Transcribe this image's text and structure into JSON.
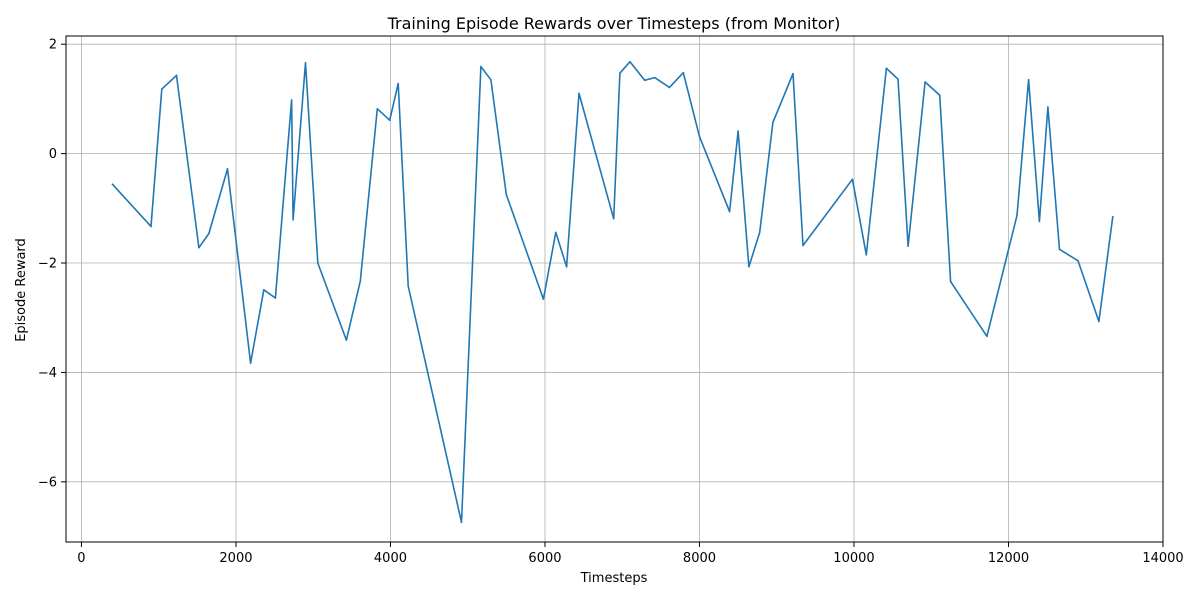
{
  "chart_data": {
    "type": "line",
    "title": "Training Episode Rewards over Timesteps (from Monitor)",
    "xlabel": "Timesteps",
    "ylabel": "Episode Reward",
    "xlim": [
      -200,
      14000
    ],
    "ylim": [
      -7.1,
      2.15
    ],
    "grid": true,
    "xticks": [
      0,
      2000,
      4000,
      6000,
      8000,
      10000,
      12000,
      14000
    ],
    "xtick_labels": [
      "0",
      "2000",
      "4000",
      "6000",
      "8000",
      "10000",
      "12000",
      "14000"
    ],
    "yticks": [
      2,
      0,
      -2,
      -4,
      -6
    ],
    "ytick_labels": [
      "2",
      "0",
      "−2",
      "−4",
      "−6"
    ],
    "line_color": "#1f77b4",
    "series": [
      {
        "x": [
          400,
          900,
          1040,
          1230,
          1520,
          1650,
          1890,
          2190,
          2360,
          2510,
          2720,
          2740,
          2900,
          3060,
          3430,
          3610,
          3830,
          3990,
          4100,
          4230,
          4920,
          5170,
          5300,
          5500,
          5980,
          6140,
          6280,
          6440,
          6890,
          6970,
          7100,
          7290,
          7420,
          7610,
          7790,
          8000,
          8390,
          8500,
          8640,
          8780,
          8950,
          9210,
          9340,
          9980,
          10160,
          10420,
          10570,
          10700,
          10920,
          11110,
          11250,
          11720,
          12110,
          12260,
          12400,
          12510,
          12660,
          12900,
          13170,
          13350
        ],
        "y": [
          -0.56,
          -1.33,
          1.18,
          1.43,
          -1.72,
          -1.46,
          -0.28,
          -3.83,
          -2.49,
          -2.64,
          0.98,
          -1.21,
          1.66,
          -2.0,
          -3.41,
          -2.33,
          0.82,
          0.61,
          1.28,
          -2.42,
          -6.74,
          1.59,
          1.35,
          -0.75,
          -2.66,
          -1.44,
          -2.07,
          1.1,
          -1.19,
          1.47,
          1.68,
          1.34,
          1.39,
          1.21,
          1.48,
          0.31,
          -1.06,
          0.41,
          -2.07,
          -1.44,
          0.57,
          1.46,
          -1.68,
          -0.47,
          -1.85,
          1.56,
          1.36,
          -1.69,
          1.31,
          1.07,
          -2.34,
          -3.34,
          -1.13,
          1.35,
          -1.24,
          0.85,
          -1.75,
          -1.96,
          -3.07,
          -1.15
        ]
      }
    ]
  }
}
